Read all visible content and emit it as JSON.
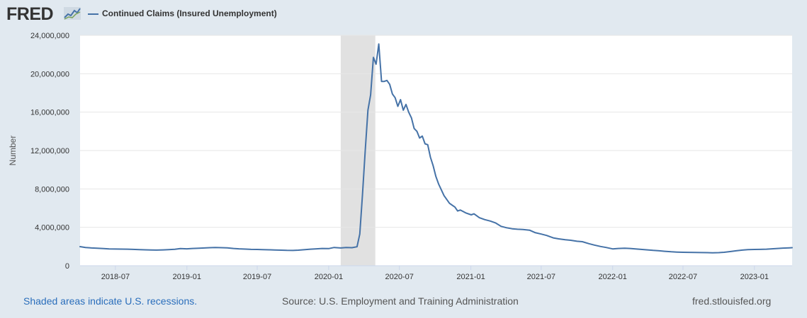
{
  "brand": {
    "logo_text": "FRED"
  },
  "legend": {
    "label": "Continued Claims (Insured Unemployment)",
    "color": "#4572a7"
  },
  "footer": {
    "recession_note": "Shaded areas indicate U.S. recessions.",
    "source": "Source: U.S. Employment and Training Administration",
    "site": "fred.stlouisfed.org"
  },
  "chart_data": {
    "type": "line",
    "title": "",
    "xlabel": "",
    "ylabel": "Number",
    "ylim": [
      0,
      24000000
    ],
    "xlim": [
      "2018-04-01",
      "2023-04-08"
    ],
    "y_ticks": [
      0,
      4000000,
      8000000,
      12000000,
      16000000,
      20000000,
      24000000
    ],
    "y_tick_labels": [
      "0",
      "4,000,000",
      "8,000,000",
      "12,000,000",
      "16,000,000",
      "20,000,000",
      "24,000,000"
    ],
    "x_ticks": [
      "2018-07-01",
      "2019-01-01",
      "2019-07-01",
      "2020-01-01",
      "2020-07-01",
      "2021-01-01",
      "2021-07-01",
      "2022-01-01",
      "2022-07-01",
      "2023-01-01"
    ],
    "x_tick_labels": [
      "2018-07",
      "2019-01",
      "2019-07",
      "2020-01",
      "2020-07",
      "2021-01",
      "2021-07",
      "2022-01",
      "2022-07",
      "2023-01"
    ],
    "grid": true,
    "legend_position": "top-left",
    "recession": {
      "start": "2020-02-01",
      "end": "2020-04-30"
    },
    "series": [
      {
        "name": "Continued Claims (Insured Unemployment)",
        "color": "#4572a7",
        "points": [
          [
            "2018-04-01",
            1990000
          ],
          [
            "2018-04-15",
            1900000
          ],
          [
            "2018-05-01",
            1850000
          ],
          [
            "2018-05-15",
            1820000
          ],
          [
            "2018-06-01",
            1790000
          ],
          [
            "2018-06-15",
            1750000
          ],
          [
            "2018-07-01",
            1740000
          ],
          [
            "2018-07-15",
            1730000
          ],
          [
            "2018-08-01",
            1720000
          ],
          [
            "2018-08-15",
            1700000
          ],
          [
            "2018-09-01",
            1680000
          ],
          [
            "2018-09-15",
            1660000
          ],
          [
            "2018-10-01",
            1640000
          ],
          [
            "2018-10-15",
            1630000
          ],
          [
            "2018-11-01",
            1650000
          ],
          [
            "2018-11-15",
            1680000
          ],
          [
            "2018-12-01",
            1710000
          ],
          [
            "2018-12-15",
            1780000
          ],
          [
            "2019-01-01",
            1760000
          ],
          [
            "2019-01-15",
            1800000
          ],
          [
            "2019-02-01",
            1820000
          ],
          [
            "2019-02-15",
            1850000
          ],
          [
            "2019-03-01",
            1880000
          ],
          [
            "2019-03-15",
            1900000
          ],
          [
            "2019-04-01",
            1880000
          ],
          [
            "2019-04-15",
            1860000
          ],
          [
            "2019-05-01",
            1800000
          ],
          [
            "2019-05-15",
            1760000
          ],
          [
            "2019-06-01",
            1730000
          ],
          [
            "2019-06-15",
            1700000
          ],
          [
            "2019-07-01",
            1690000
          ],
          [
            "2019-07-15",
            1670000
          ],
          [
            "2019-08-01",
            1660000
          ],
          [
            "2019-08-15",
            1640000
          ],
          [
            "2019-09-01",
            1620000
          ],
          [
            "2019-09-15",
            1600000
          ],
          [
            "2019-10-01",
            1590000
          ],
          [
            "2019-10-15",
            1620000
          ],
          [
            "2019-11-01",
            1680000
          ],
          [
            "2019-11-15",
            1720000
          ],
          [
            "2019-12-01",
            1760000
          ],
          [
            "2019-12-15",
            1800000
          ],
          [
            "2020-01-01",
            1780000
          ],
          [
            "2020-01-15",
            1900000
          ],
          [
            "2020-02-01",
            1850000
          ],
          [
            "2020-02-15",
            1900000
          ],
          [
            "2020-03-01",
            1880000
          ],
          [
            "2020-03-14",
            1970000
          ],
          [
            "2020-03-21",
            3300000
          ],
          [
            "2020-03-28",
            7400000
          ],
          [
            "2020-04-04",
            11900000
          ],
          [
            "2020-04-11",
            16200000
          ],
          [
            "2020-04-18",
            17800000
          ],
          [
            "2020-04-25",
            21700000
          ],
          [
            "2020-05-02",
            21000000
          ],
          [
            "2020-05-09",
            23100000
          ],
          [
            "2020-05-16",
            19200000
          ],
          [
            "2020-05-23",
            19200000
          ],
          [
            "2020-05-30",
            19300000
          ],
          [
            "2020-06-06",
            18900000
          ],
          [
            "2020-06-13",
            17900000
          ],
          [
            "2020-06-20",
            17500000
          ],
          [
            "2020-06-27",
            16600000
          ],
          [
            "2020-07-04",
            17300000
          ],
          [
            "2020-07-11",
            16200000
          ],
          [
            "2020-07-18",
            16800000
          ],
          [
            "2020-07-25",
            16000000
          ],
          [
            "2020-08-01",
            15400000
          ],
          [
            "2020-08-08",
            14300000
          ],
          [
            "2020-08-15",
            14000000
          ],
          [
            "2020-08-22",
            13300000
          ],
          [
            "2020-08-29",
            13500000
          ],
          [
            "2020-09-05",
            12700000
          ],
          [
            "2020-09-12",
            12600000
          ],
          [
            "2020-09-19",
            11300000
          ],
          [
            "2020-09-26",
            10400000
          ],
          [
            "2020-10-03",
            9300000
          ],
          [
            "2020-10-10",
            8500000
          ],
          [
            "2020-10-24",
            7300000
          ],
          [
            "2020-11-07",
            6500000
          ],
          [
            "2020-11-21",
            6100000
          ],
          [
            "2020-11-28",
            5700000
          ],
          [
            "2020-12-05",
            5800000
          ],
          [
            "2020-12-19",
            5500000
          ],
          [
            "2021-01-02",
            5300000
          ],
          [
            "2021-01-09",
            5400000
          ],
          [
            "2021-01-23",
            5000000
          ],
          [
            "2021-02-06",
            4800000
          ],
          [
            "2021-02-20",
            4650000
          ],
          [
            "2021-03-06",
            4450000
          ],
          [
            "2021-03-20",
            4100000
          ],
          [
            "2021-04-03",
            3950000
          ],
          [
            "2021-04-17",
            3850000
          ],
          [
            "2021-05-01",
            3800000
          ],
          [
            "2021-05-15",
            3780000
          ],
          [
            "2021-06-01",
            3700000
          ],
          [
            "2021-06-15",
            3450000
          ],
          [
            "2021-07-01",
            3300000
          ],
          [
            "2021-07-15",
            3150000
          ],
          [
            "2021-08-01",
            2900000
          ],
          [
            "2021-08-15",
            2800000
          ],
          [
            "2021-09-01",
            2700000
          ],
          [
            "2021-09-15",
            2650000
          ],
          [
            "2021-10-01",
            2550000
          ],
          [
            "2021-10-15",
            2500000
          ],
          [
            "2021-11-01",
            2300000
          ],
          [
            "2021-11-15",
            2150000
          ],
          [
            "2021-12-01",
            2000000
          ],
          [
            "2021-12-15",
            1900000
          ],
          [
            "2022-01-01",
            1750000
          ],
          [
            "2022-01-15",
            1800000
          ],
          [
            "2022-02-01",
            1820000
          ],
          [
            "2022-02-15",
            1800000
          ],
          [
            "2022-03-01",
            1750000
          ],
          [
            "2022-03-15",
            1700000
          ],
          [
            "2022-04-01",
            1650000
          ],
          [
            "2022-04-15",
            1600000
          ],
          [
            "2022-05-01",
            1550000
          ],
          [
            "2022-05-15",
            1500000
          ],
          [
            "2022-06-01",
            1450000
          ],
          [
            "2022-06-15",
            1420000
          ],
          [
            "2022-07-01",
            1400000
          ],
          [
            "2022-07-15",
            1390000
          ],
          [
            "2022-08-01",
            1380000
          ],
          [
            "2022-08-15",
            1370000
          ],
          [
            "2022-09-01",
            1360000
          ],
          [
            "2022-09-15",
            1340000
          ],
          [
            "2022-10-01",
            1360000
          ],
          [
            "2022-10-15",
            1400000
          ],
          [
            "2022-11-01",
            1480000
          ],
          [
            "2022-11-15",
            1550000
          ],
          [
            "2022-12-01",
            1630000
          ],
          [
            "2022-12-15",
            1680000
          ],
          [
            "2023-01-01",
            1690000
          ],
          [
            "2023-01-15",
            1700000
          ],
          [
            "2023-02-01",
            1720000
          ],
          [
            "2023-02-15",
            1760000
          ],
          [
            "2023-03-01",
            1800000
          ],
          [
            "2023-03-15",
            1830000
          ],
          [
            "2023-04-01",
            1860000
          ],
          [
            "2023-04-08",
            1880000
          ]
        ]
      }
    ]
  }
}
